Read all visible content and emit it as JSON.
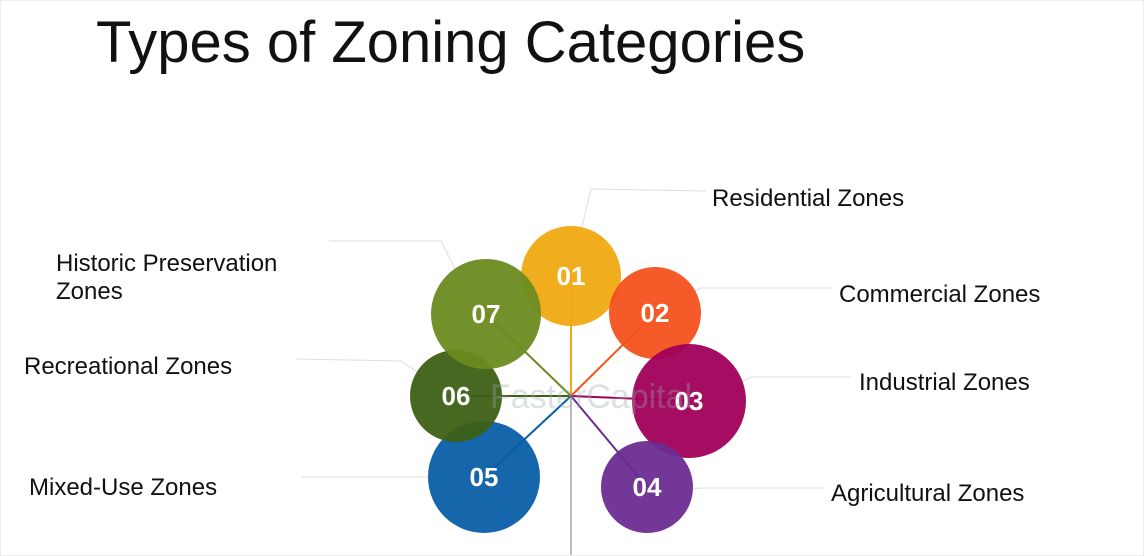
{
  "header": {
    "title": "Types of Zoning Categories"
  },
  "watermark": "FasterCapital",
  "nodes": [
    {
      "number": "01",
      "label": "Residential Zones",
      "color": "#efa912"
    },
    {
      "number": "02",
      "label": "Commercial Zones",
      "color": "#f4511e"
    },
    {
      "number": "03",
      "label": "Industrial Zones",
      "color": "#a0005a"
    },
    {
      "number": "04",
      "label": "Agricultural Zones",
      "color": "#6a2c91"
    },
    {
      "number": "05",
      "label": "Mixed-Use Zones",
      "color": "#0a5ea8"
    },
    {
      "number": "06",
      "label": "Recreational Zones",
      "color": "#3d6015"
    },
    {
      "number": "07",
      "label": "Historic Preservation Zones",
      "color": "#6b8b1f"
    }
  ]
}
